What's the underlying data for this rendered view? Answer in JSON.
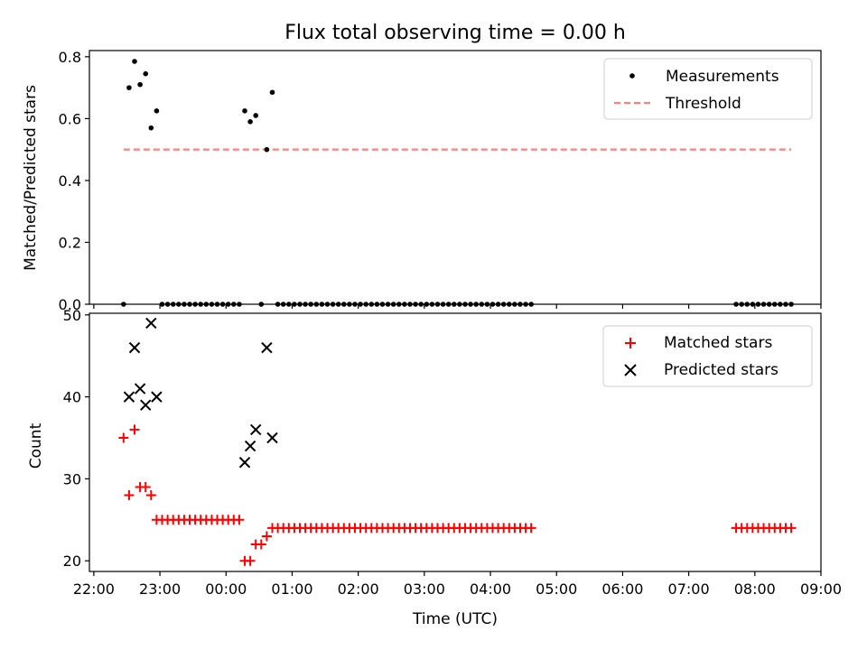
{
  "figure": {
    "title": "Flux total observing time = 0.00 h",
    "xlabel": "Time (UTC)"
  },
  "chart_data": [
    {
      "type": "scatter",
      "title": "Flux total observing time = 0.00 h",
      "xlabel": "Time (UTC)",
      "ylabel": "Matched/Predicted stars",
      "xlim": [
        "21:56",
        "09:00"
      ],
      "ylim": [
        0,
        0.82
      ],
      "x_ticks": [
        "22:00",
        "23:00",
        "00:00",
        "01:00",
        "02:00",
        "03:00",
        "04:00",
        "05:00",
        "06:00",
        "07:00",
        "08:00",
        "09:00"
      ],
      "y_ticks": [
        "0.0",
        "0.2",
        "0.4",
        "0.6",
        "0.8"
      ],
      "legend_position": "top-right",
      "grid": false,
      "legend": [
        "Measurements",
        "Threshold"
      ],
      "colors": {
        "measurements": "#000000",
        "threshold": "#ff7f7f"
      },
      "threshold": {
        "x_start": "22:27",
        "x_end": "08:33",
        "y": 0.5
      },
      "series": [
        {
          "name": "Measurements",
          "points": [
            [
              "22:27",
              0.0
            ],
            [
              "22:32",
              0.7
            ],
            [
              "22:37",
              0.785
            ],
            [
              "22:42",
              0.71
            ],
            [
              "22:47",
              0.745
            ],
            [
              "22:52",
              0.57
            ],
            [
              "22:57",
              0.625
            ],
            [
              "23:02",
              0
            ],
            [
              "23:07",
              0
            ],
            [
              "23:12",
              0
            ],
            [
              "23:17",
              0
            ],
            [
              "23:22",
              0
            ],
            [
              "23:27",
              0
            ],
            [
              "23:32",
              0
            ],
            [
              "23:37",
              0
            ],
            [
              "23:42",
              0
            ],
            [
              "23:47",
              0
            ],
            [
              "23:52",
              0
            ],
            [
              "23:57",
              0
            ],
            [
              "00:02",
              0
            ],
            [
              "00:07",
              0
            ],
            [
              "00:12",
              0
            ],
            [
              "00:17",
              0.625
            ],
            [
              "00:22",
              0.59
            ],
            [
              "00:27",
              0.61
            ],
            [
              "00:32",
              0.0
            ],
            [
              "00:37",
              0.5
            ],
            [
              "00:42",
              0.685
            ],
            [
              "00:47",
              0
            ],
            [
              "00:52",
              0
            ],
            [
              "00:57",
              0
            ],
            [
              "01:02",
              0
            ],
            [
              "01:07",
              0
            ],
            [
              "01:12",
              0
            ],
            [
              "01:17",
              0
            ],
            [
              "01:22",
              0
            ],
            [
              "01:27",
              0
            ],
            [
              "01:32",
              0
            ],
            [
              "01:37",
              0
            ],
            [
              "01:42",
              0
            ],
            [
              "01:47",
              0
            ],
            [
              "01:52",
              0
            ],
            [
              "01:57",
              0
            ],
            [
              "02:02",
              0
            ],
            [
              "02:07",
              0
            ],
            [
              "02:12",
              0
            ],
            [
              "02:17",
              0
            ],
            [
              "02:22",
              0
            ],
            [
              "02:27",
              0
            ],
            [
              "02:32",
              0
            ],
            [
              "02:37",
              0
            ],
            [
              "02:42",
              0
            ],
            [
              "02:47",
              0
            ],
            [
              "02:52",
              0
            ],
            [
              "02:57",
              0
            ],
            [
              "03:02",
              0
            ],
            [
              "03:07",
              0
            ],
            [
              "03:12",
              0
            ],
            [
              "03:17",
              0
            ],
            [
              "03:22",
              0
            ],
            [
              "03:27",
              0
            ],
            [
              "03:32",
              0
            ],
            [
              "03:37",
              0
            ],
            [
              "03:42",
              0
            ],
            [
              "03:47",
              0
            ],
            [
              "03:52",
              0
            ],
            [
              "03:57",
              0
            ],
            [
              "04:02",
              0
            ],
            [
              "04:07",
              0
            ],
            [
              "04:12",
              0
            ],
            [
              "04:17",
              0
            ],
            [
              "04:22",
              0
            ],
            [
              "04:27",
              0
            ],
            [
              "04:32",
              0
            ],
            [
              "04:37",
              0
            ],
            [
              "07:43",
              0
            ],
            [
              "07:48",
              0
            ],
            [
              "07:53",
              0
            ],
            [
              "07:58",
              0
            ],
            [
              "08:03",
              0
            ],
            [
              "08:08",
              0
            ],
            [
              "08:13",
              0
            ],
            [
              "08:18",
              0
            ],
            [
              "08:23",
              0
            ],
            [
              "08:28",
              0
            ],
            [
              "08:33",
              0
            ]
          ]
        }
      ]
    },
    {
      "type": "scatter",
      "xlabel": "Time (UTC)",
      "ylabel": "Count",
      "xlim": [
        "21:56",
        "09:00"
      ],
      "ylim": [
        18.7,
        50.2
      ],
      "x_ticks": [
        "22:00",
        "23:00",
        "00:00",
        "01:00",
        "02:00",
        "03:00",
        "04:00",
        "05:00",
        "06:00",
        "07:00",
        "08:00",
        "09:00"
      ],
      "y_ticks": [
        "20",
        "30",
        "40",
        "50"
      ],
      "legend_position": "top-right",
      "grid": false,
      "legend": [
        "Matched stars",
        "Predicted stars"
      ],
      "colors": {
        "matched": "#ff0000",
        "predicted": "#000000"
      },
      "series": [
        {
          "name": "Matched stars",
          "marker": "+",
          "points": [
            [
              "22:27",
              35
            ],
            [
              "22:32",
              28
            ],
            [
              "22:37",
              36
            ],
            [
              "22:42",
              29
            ],
            [
              "22:47",
              29
            ],
            [
              "22:52",
              28
            ],
            [
              "22:57",
              25
            ],
            [
              "23:02",
              25
            ],
            [
              "23:07",
              25
            ],
            [
              "23:12",
              25
            ],
            [
              "23:17",
              25
            ],
            [
              "23:22",
              25
            ],
            [
              "23:27",
              25
            ],
            [
              "23:32",
              25
            ],
            [
              "23:37",
              25
            ],
            [
              "23:42",
              25
            ],
            [
              "23:47",
              25
            ],
            [
              "23:52",
              25
            ],
            [
              "23:57",
              25
            ],
            [
              "00:02",
              25
            ],
            [
              "00:07",
              25
            ],
            [
              "00:12",
              25
            ],
            [
              "00:17",
              20
            ],
            [
              "00:22",
              20
            ],
            [
              "00:27",
              22
            ],
            [
              "00:32",
              22
            ],
            [
              "00:37",
              23
            ],
            [
              "00:42",
              24
            ],
            [
              "00:47",
              24
            ],
            [
              "00:52",
              24
            ],
            [
              "00:57",
              24
            ],
            [
              "01:02",
              24
            ],
            [
              "01:07",
              24
            ],
            [
              "01:12",
              24
            ],
            [
              "01:17",
              24
            ],
            [
              "01:22",
              24
            ],
            [
              "01:27",
              24
            ],
            [
              "01:32",
              24
            ],
            [
              "01:37",
              24
            ],
            [
              "01:42",
              24
            ],
            [
              "01:47",
              24
            ],
            [
              "01:52",
              24
            ],
            [
              "01:57",
              24
            ],
            [
              "02:02",
              24
            ],
            [
              "02:07",
              24
            ],
            [
              "02:12",
              24
            ],
            [
              "02:17",
              24
            ],
            [
              "02:22",
              24
            ],
            [
              "02:27",
              24
            ],
            [
              "02:32",
              24
            ],
            [
              "02:37",
              24
            ],
            [
              "02:42",
              24
            ],
            [
              "02:47",
              24
            ],
            [
              "02:52",
              24
            ],
            [
              "02:57",
              24
            ],
            [
              "03:02",
              24
            ],
            [
              "03:07",
              24
            ],
            [
              "03:12",
              24
            ],
            [
              "03:17",
              24
            ],
            [
              "03:22",
              24
            ],
            [
              "03:27",
              24
            ],
            [
              "03:32",
              24
            ],
            [
              "03:37",
              24
            ],
            [
              "03:42",
              24
            ],
            [
              "03:47",
              24
            ],
            [
              "03:52",
              24
            ],
            [
              "03:57",
              24
            ],
            [
              "04:02",
              24
            ],
            [
              "04:07",
              24
            ],
            [
              "04:12",
              24
            ],
            [
              "04:17",
              24
            ],
            [
              "04:22",
              24
            ],
            [
              "04:27",
              24
            ],
            [
              "04:32",
              24
            ],
            [
              "04:37",
              24
            ],
            [
              "07:43",
              24
            ],
            [
              "07:48",
              24
            ],
            [
              "07:53",
              24
            ],
            [
              "07:58",
              24
            ],
            [
              "08:03",
              24
            ],
            [
              "08:08",
              24
            ],
            [
              "08:13",
              24
            ],
            [
              "08:18",
              24
            ],
            [
              "08:23",
              24
            ],
            [
              "08:28",
              24
            ],
            [
              "08:33",
              24
            ]
          ]
        },
        {
          "name": "Predicted stars",
          "marker": "x",
          "points": [
            [
              "22:32",
              40
            ],
            [
              "22:37",
              46
            ],
            [
              "22:42",
              41
            ],
            [
              "22:47",
              39
            ],
            [
              "22:52",
              49
            ],
            [
              "22:57",
              40
            ],
            [
              "00:17",
              32
            ],
            [
              "00:22",
              34
            ],
            [
              "00:27",
              36
            ],
            [
              "00:37",
              46
            ],
            [
              "00:42",
              35
            ]
          ]
        }
      ]
    }
  ]
}
